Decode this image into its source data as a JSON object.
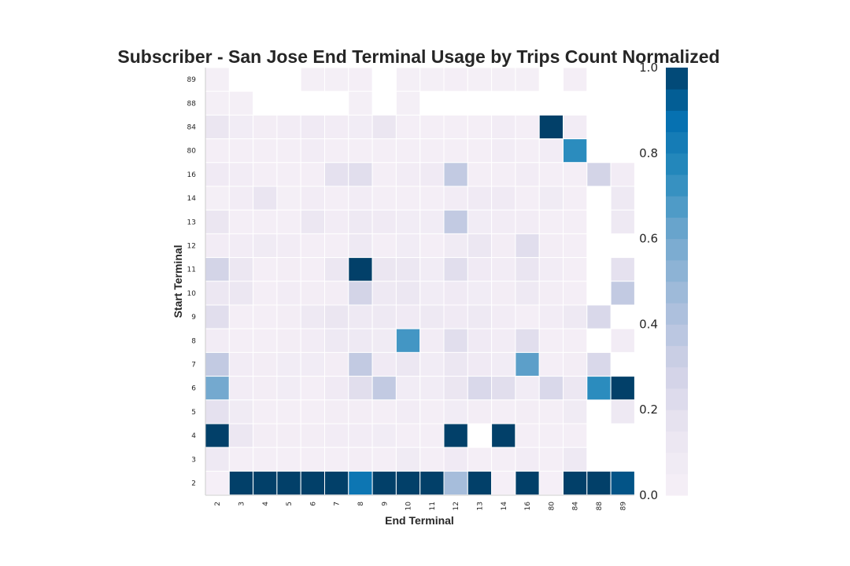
{
  "chart_data": {
    "type": "heatmap",
    "title": "Subscriber - San Jose End Terminal Usage by Trips Count Normalized",
    "xlabel": "End Terminal",
    "ylabel": "Start Terminal",
    "x_categories": [
      "2",
      "3",
      "4",
      "5",
      "6",
      "7",
      "8",
      "9",
      "10",
      "11",
      "12",
      "13",
      "14",
      "16",
      "80",
      "84",
      "88",
      "89"
    ],
    "y_categories": [
      "89",
      "88",
      "84",
      "80",
      "16",
      "14",
      "13",
      "12",
      "11",
      "10",
      "9",
      "8",
      "7",
      "6",
      "5",
      "4",
      "3",
      "2"
    ],
    "values": [
      [
        0.02,
        null,
        null,
        null,
        0.02,
        0.02,
        0.03,
        null,
        0.02,
        0.02,
        0.03,
        0.02,
        0.02,
        0.02,
        null,
        0.03,
        null,
        null
      ],
      [
        0.02,
        0.02,
        null,
        null,
        null,
        null,
        0.02,
        null,
        0.02,
        null,
        null,
        null,
        null,
        null,
        null,
        null,
        null,
        null
      ],
      [
        0.14,
        0.06,
        0.04,
        0.05,
        0.08,
        0.05,
        0.06,
        0.14,
        0.03,
        0.03,
        0.03,
        0.03,
        0.05,
        0.03,
        1.0,
        0.05,
        null,
        null
      ],
      [
        0.03,
        0.03,
        0.03,
        0.03,
        0.05,
        0.03,
        0.03,
        0.03,
        0.03,
        0.03,
        0.03,
        0.03,
        0.05,
        0.03,
        0.05,
        0.75,
        null,
        null
      ],
      [
        0.08,
        0.05,
        0.03,
        0.03,
        0.03,
        0.18,
        0.2,
        0.03,
        0.05,
        0.08,
        0.35,
        0.03,
        0.03,
        0.05,
        0.03,
        0.03,
        0.28,
        0.05
      ],
      [
        0.02,
        0.05,
        0.15,
        0.02,
        0.05,
        0.03,
        0.05,
        0.03,
        0.03,
        0.03,
        0.05,
        0.08,
        0.08,
        0.03,
        0.07,
        0.03,
        null,
        0.1
      ],
      [
        0.14,
        0.03,
        0.03,
        0.03,
        0.12,
        0.05,
        0.1,
        0.08,
        0.06,
        0.06,
        0.35,
        0.06,
        0.05,
        0.05,
        0.03,
        0.03,
        null,
        0.1
      ],
      [
        0.05,
        0.05,
        0.07,
        0.05,
        0.03,
        0.03,
        0.1,
        0.03,
        0.06,
        0.03,
        0.07,
        0.12,
        0.04,
        0.2,
        0.04,
        0.03,
        null,
        null
      ],
      [
        0.28,
        0.12,
        0.03,
        0.04,
        0.03,
        0.12,
        1.0,
        0.14,
        0.12,
        0.06,
        0.2,
        0.08,
        0.05,
        0.15,
        0.05,
        0.03,
        null,
        0.18
      ],
      [
        0.12,
        0.12,
        0.03,
        0.05,
        0.04,
        0.04,
        0.28,
        0.1,
        0.12,
        0.06,
        0.08,
        0.06,
        0.04,
        0.1,
        0.04,
        0.03,
        null,
        0.35
      ],
      [
        0.2,
        0.03,
        0.03,
        0.04,
        0.1,
        0.14,
        0.1,
        0.1,
        0.08,
        0.1,
        0.08,
        0.1,
        0.05,
        0.03,
        0.05,
        0.1,
        0.25,
        null
      ],
      [
        0.05,
        0.03,
        0.03,
        0.04,
        0.05,
        0.1,
        0.1,
        0.07,
        0.7,
        0.05,
        0.2,
        0.08,
        0.05,
        0.2,
        0.03,
        0.03,
        null,
        0.05
      ],
      [
        0.35,
        0.05,
        0.04,
        0.06,
        0.06,
        0.04,
        0.35,
        0.08,
        0.12,
        0.06,
        0.12,
        0.08,
        0.06,
        0.65,
        0.03,
        0.04,
        0.25,
        null
      ],
      [
        0.6,
        0.05,
        0.04,
        0.06,
        0.03,
        0.08,
        0.2,
        0.35,
        0.06,
        0.06,
        0.14,
        0.25,
        0.2,
        0.06,
        0.25,
        0.12,
        0.75,
        1.0
      ],
      [
        0.18,
        0.07,
        0.03,
        0.03,
        0.03,
        0.04,
        0.04,
        0.03,
        0.05,
        0.03,
        0.06,
        0.04,
        0.03,
        0.04,
        0.03,
        0.07,
        null,
        0.1
      ],
      [
        1.0,
        0.12,
        0.04,
        0.04,
        0.04,
        0.05,
        0.05,
        0.06,
        0.03,
        0.03,
        1.0,
        null,
        1.0,
        0.03,
        0.03,
        0.03,
        null,
        null
      ],
      [
        0.1,
        0.03,
        0.03,
        0.03,
        0.03,
        0.03,
        0.04,
        0.03,
        0.07,
        0.03,
        0.08,
        0.03,
        0.03,
        0.05,
        0.03,
        0.1,
        null,
        null
      ],
      [
        0.01,
        1.0,
        1.0,
        1.0,
        1.0,
        1.0,
        0.85,
        1.0,
        1.0,
        1.0,
        0.45,
        1.0,
        0.01,
        1.0,
        0.01,
        1.0,
        1.0,
        0.95
      ]
    ],
    "vmin": 0.0,
    "vmax": 1.0,
    "colorbar_ticks": [
      "0.0",
      "0.2",
      "0.4",
      "0.6",
      "0.8",
      "1.0"
    ],
    "colormap": "PuBu"
  }
}
